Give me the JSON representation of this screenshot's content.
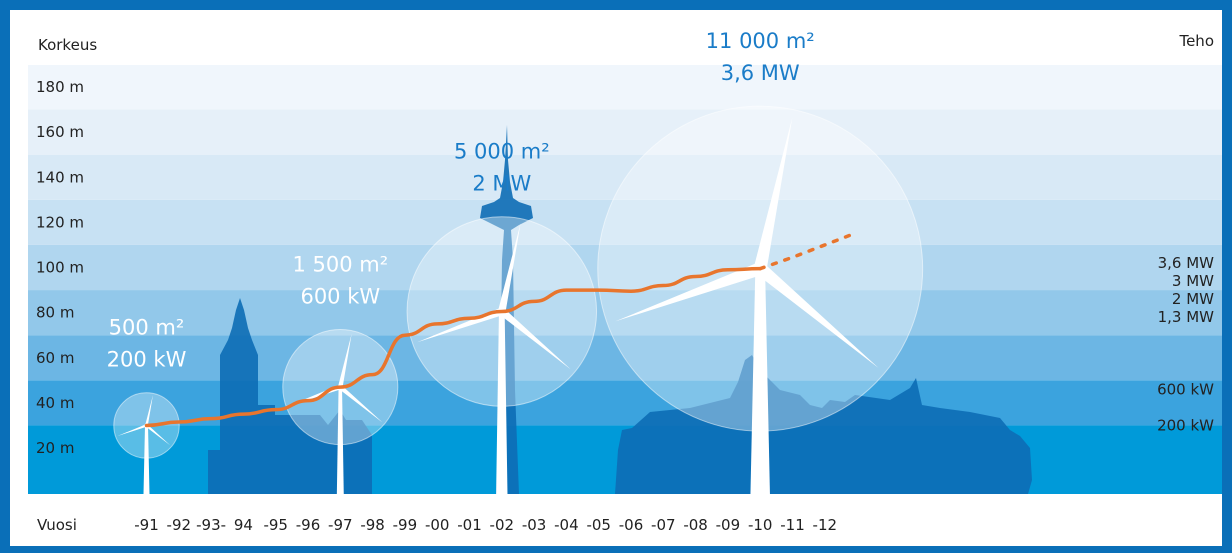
{
  "chart_data": {
    "type": "line",
    "y_left_label": "Korkeus",
    "y_right_label": "Teho",
    "x_label": "Vuosi",
    "y_ticks": [
      "20 m",
      "40 m",
      "60 m",
      "80 m",
      "100 m",
      "120 m",
      "140 m",
      "160 m",
      "180 m"
    ],
    "y_tick_values": [
      20,
      40,
      60,
      80,
      100,
      120,
      140,
      160,
      180
    ],
    "ylim": [
      0,
      185
    ],
    "right_ticks": [
      {
        "label": "200 kW",
        "height": 30
      },
      {
        "label": "600 kW",
        "height": 46
      },
      {
        "label": "1,3 MW",
        "height": 78
      },
      {
        "label": "2 MW",
        "height": 86
      },
      {
        "label": "3 MW",
        "height": 94
      },
      {
        "label": "3,6 MW",
        "height": 102
      }
    ],
    "x_ticks": [
      "-91",
      "-92",
      "-93-",
      "94",
      "-95",
      "-96",
      "-97",
      "-98",
      "-99",
      "-00",
      "-01",
      "-02",
      "-03",
      "-04",
      "-05",
      "-06",
      "-07",
      "-08",
      "-09",
      "-10",
      "-11",
      "-12"
    ],
    "series": [
      {
        "values": [
          30,
          31.5,
          33,
          35,
          37,
          41,
          47,
          52.5,
          70,
          75,
          77.5,
          80.5,
          85,
          90,
          90,
          89.5,
          92,
          96,
          99,
          99.5
        ],
        "projection": [
          99.5,
          104.5,
          110,
          115.5
        ]
      }
    ],
    "turbines": [
      {
        "year_index": 0,
        "hub_height": 30,
        "rotor_radius": 14.5,
        "area_label": "500 m²",
        "power_label": "200 kW",
        "label_style": "white"
      },
      {
        "year_index": 6,
        "hub_height": 47,
        "rotor_radius": 25.5,
        "area_label": "1 500 m²",
        "power_label": "600 kW",
        "label_style": "white"
      },
      {
        "year_index": 11,
        "hub_height": 80.5,
        "rotor_radius": 42,
        "area_label": "5 000 m²",
        "power_label": "2 MW",
        "label_style": "blue"
      },
      {
        "year_index": 19,
        "hub_height": 99.5,
        "rotor_radius": 72,
        "area_label": "11 000 m²",
        "power_label": "3,6 MW",
        "label_style": "blue"
      }
    ],
    "band_colors": [
      "#009ad9",
      "#3ba3de",
      "#6cb6e4",
      "#92c8ea",
      "#b0d6ef",
      "#c7e1f3",
      "#d8e9f6",
      "#e6f0f9",
      "#f0f6fc"
    ],
    "line_color": "#e8752d",
    "silhouette_color": "#0d6db5"
  }
}
